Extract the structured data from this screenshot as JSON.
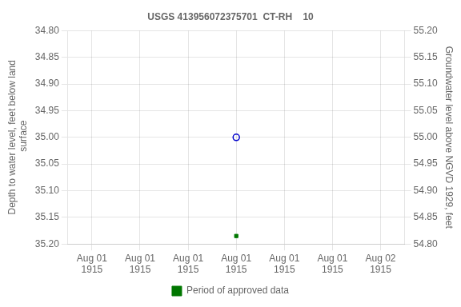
{
  "chart_data": {
    "type": "scatter",
    "title": "USGS 413956072375701  CT-RH    10",
    "y_label": "Depth to water level, feet below land\n surface",
    "y2_label": "Groundwater level above NGVD 1929, feet",
    "categories": [
      "Aug 01\n1915",
      "Aug 01\n1915",
      "Aug 01\n1915",
      "Aug 01\n1915",
      "Aug 01\n1915",
      "Aug 01\n1915",
      "Aug 02\n1915"
    ],
    "series": [
      {
        "color": "#0000cc",
        "marker": "circle-open",
        "values": [
          null,
          null,
          null,
          35.0,
          null,
          null,
          null
        ]
      },
      {
        "name": "Period of approved data",
        "color": "#007700",
        "marker": "square",
        "values": [
          null,
          null,
          null,
          35.185,
          null,
          null,
          null
        ]
      }
    ],
    "ylim": [
      35.2,
      34.8
    ],
    "yticks": [
      {
        "value": 34.8,
        "label": "34.80"
      },
      {
        "value": 34.85,
        "label": "34.85"
      },
      {
        "value": 34.9,
        "label": "34.90"
      },
      {
        "value": 34.95,
        "label": "34.95"
      },
      {
        "value": 35.0,
        "label": "35.00"
      },
      {
        "value": 35.05,
        "label": "35.05"
      },
      {
        "value": 35.1,
        "label": "35.10"
      },
      {
        "value": 35.15,
        "label": "35.15"
      },
      {
        "value": 35.2,
        "label": "35.20"
      }
    ],
    "y2lim": [
      54.8,
      55.2
    ],
    "y2ticks": [
      {
        "value": 54.8,
        "label": "54.80"
      },
      {
        "value": 54.85,
        "label": "54.85"
      },
      {
        "value": 54.9,
        "label": "54.90"
      },
      {
        "value": 54.95,
        "label": "54.95"
      },
      {
        "value": 55.0,
        "label": "55.00"
      },
      {
        "value": 55.05,
        "label": "55.05"
      },
      {
        "value": 55.1,
        "label": "55.10"
      },
      {
        "value": 55.15,
        "label": "55.15"
      },
      {
        "value": 55.2,
        "label": "55.20"
      }
    ],
    "grid": true,
    "legend": "bottom"
  }
}
